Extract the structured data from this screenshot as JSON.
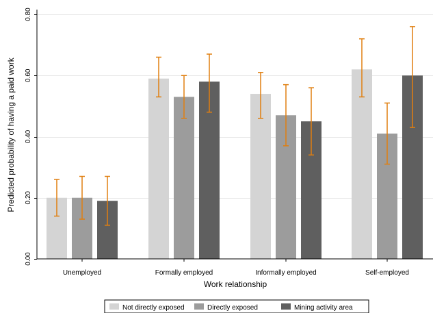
{
  "chart_data": {
    "type": "bar",
    "xlabel": "Work relationship",
    "ylabel": "Predicted probability of having a paid work",
    "ylim": [
      0,
      0.8
    ],
    "yticks": [
      "0.00",
      "0.20",
      "0.40",
      "0.60",
      "0.80"
    ],
    "yticks_values": [
      0,
      0.2,
      0.4,
      0.6,
      0.8
    ],
    "categories": [
      "Unemployed",
      "Formally employed",
      "Informally employed",
      "Self-employed"
    ],
    "series": [
      {
        "name": "Not directly exposed",
        "color": "#d4d4d4",
        "values": [
          0.2,
          0.59,
          0.54,
          0.62
        ],
        "ci_low": [
          0.14,
          0.53,
          0.46,
          0.53
        ],
        "ci_high": [
          0.26,
          0.66,
          0.61,
          0.72
        ]
      },
      {
        "name": "Directly exposed",
        "color": "#9c9c9c",
        "values": [
          0.2,
          0.53,
          0.47,
          0.41
        ],
        "ci_low": [
          0.13,
          0.46,
          0.37,
          0.31
        ],
        "ci_high": [
          0.27,
          0.6,
          0.57,
          0.51
        ]
      },
      {
        "name": "Mining activity area",
        "color": "#5f5f5f",
        "values": [
          0.19,
          0.58,
          0.45,
          0.6
        ],
        "ci_low": [
          0.11,
          0.48,
          0.34,
          0.43
        ],
        "ci_high": [
          0.27,
          0.67,
          0.56,
          0.76
        ]
      }
    ],
    "errorbar_color": "#e07f10",
    "grid": true,
    "legend_position": "bottom"
  }
}
